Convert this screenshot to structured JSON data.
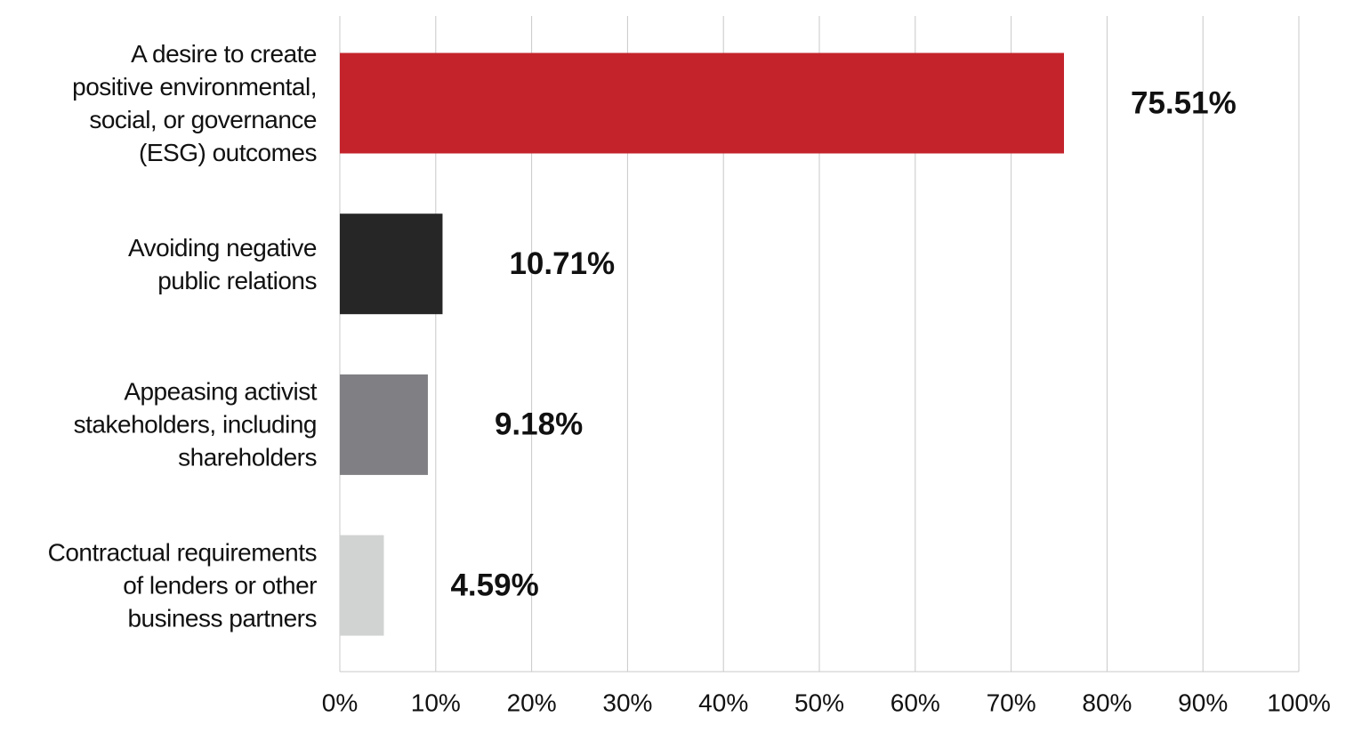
{
  "chart_data": {
    "type": "hbar",
    "categories": [
      "A desire to create\npositive environmental,\nsocial, or governance\n(ESG) outcomes",
      "Avoiding negative\npublic relations",
      "Appeasing activist\nstakeholders, including\nshareholders",
      "Contractual requirements\nof lenders or other\nbusiness partners"
    ],
    "values": [
      75.51,
      10.71,
      9.18,
      4.59
    ],
    "value_labels": [
      "75.51%",
      "10.71%",
      "9.18%",
      "4.59%"
    ],
    "colors": [
      "#c4232b",
      "#262626",
      "#808084",
      "#d0d3d2"
    ],
    "xlim": [
      0,
      100
    ],
    "xticks": [
      {
        "value": 0,
        "label": "0%"
      },
      {
        "value": 10,
        "label": "10%"
      },
      {
        "value": 20,
        "label": "20%"
      },
      {
        "value": 30,
        "label": "30%"
      },
      {
        "value": 40,
        "label": "40%"
      },
      {
        "value": 50,
        "label": "50%"
      },
      {
        "value": 60,
        "label": "60%"
      },
      {
        "value": 70,
        "label": "70%"
      },
      {
        "value": 80,
        "label": "80%"
      },
      {
        "value": 90,
        "label": "90%"
      },
      {
        "value": 100,
        "label": "100%"
      }
    ],
    "grid": true
  }
}
